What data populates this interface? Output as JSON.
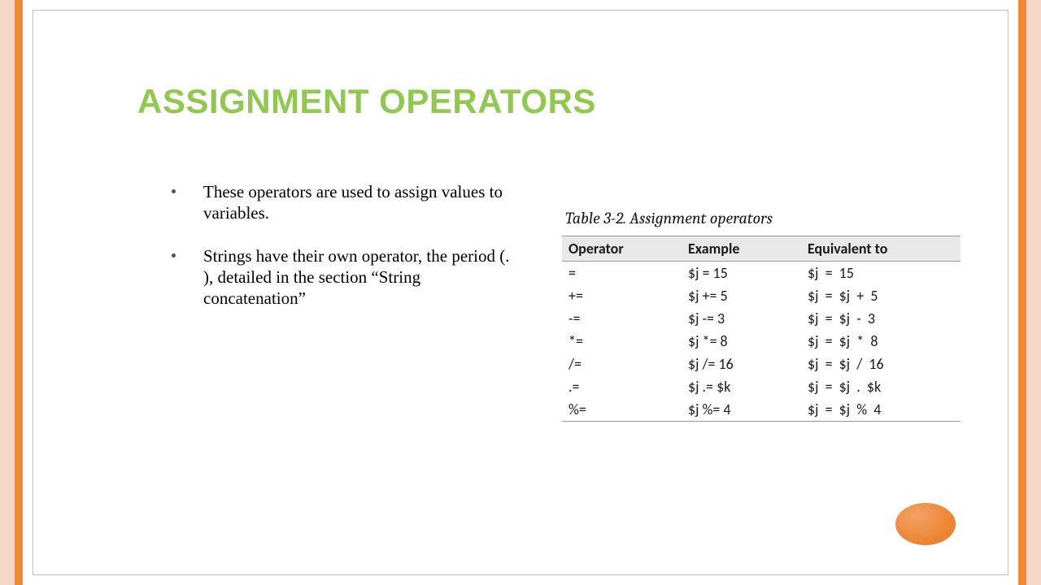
{
  "frame": {
    "side_color": "#f5d6c6",
    "accent_color": "#ee8a3a",
    "border_color": "#c0bfbf"
  },
  "title": {
    "text": "ASSIGNMENT OPERATORS",
    "color": "#92c754",
    "fontsize": 42
  },
  "bullets": [
    "These operators are used to assign values to variables.",
    "Strings have their own operator, the period (. ), detailed in the section “String concatenation”"
  ],
  "table": {
    "caption": "Table 3-2. Assignment operators",
    "columns": [
      "Operator",
      "Example",
      "Equivalent to"
    ],
    "header_bg": "#e8e8e8",
    "border_color": "#9a9a9a",
    "rows": [
      [
        "=",
        "$j = 15",
        "$j  =  15"
      ],
      [
        "+=",
        "$j += 5",
        "$j  =  $j  +  5"
      ],
      [
        "-=",
        "$j -= 3",
        "$j  =  $j  -  3"
      ],
      [
        "*=",
        "$j *= 8",
        "$j  =  $j  *  8"
      ],
      [
        "/=",
        "$j /= 16",
        "$j  =  $j  /  16"
      ],
      [
        ".=",
        "$j .= $k",
        "$j  =  $j  .  $k"
      ],
      [
        "%=",
        "$j %= 4",
        "$j  =  $j  %  4"
      ]
    ]
  },
  "decor": {
    "oval_color_light": "#f3a267",
    "oval_color_mid": "#ed8939",
    "oval_color_dark": "#e07a28"
  }
}
